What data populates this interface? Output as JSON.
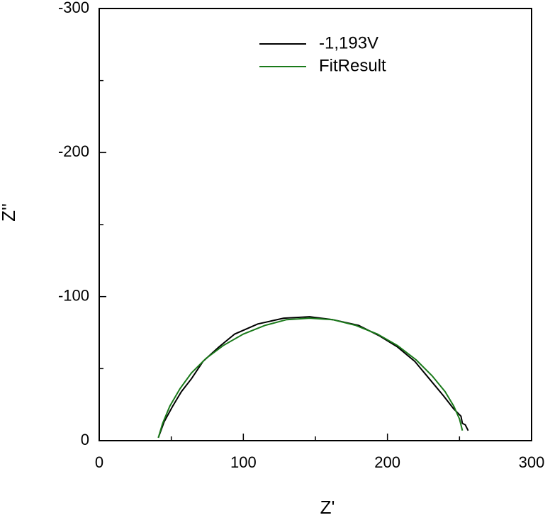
{
  "chart_data": {
    "type": "line",
    "xlabel": "Z'",
    "ylabel": "Z''",
    "xlim": [
      0,
      300
    ],
    "ylim": [
      0,
      -300
    ],
    "xticks": [
      0,
      100,
      200,
      300
    ],
    "yticks": [
      0,
      -100,
      -200,
      -300
    ],
    "xminorticks": [
      50,
      150,
      250
    ],
    "yminorticks": [
      -50,
      -150,
      -250
    ],
    "legend": "upper center",
    "series": [
      {
        "name": "-1,193V",
        "color": "#000000",
        "x": [
          41,
          45,
          51,
          57,
          64,
          72,
          83,
          94,
          110,
          128,
          146,
          162,
          180,
          194,
          207,
          219,
          229,
          239,
          246,
          251,
          252,
          254,
          256
        ],
        "values": [
          -2,
          -13,
          -24,
          -34,
          -43,
          -55,
          -65,
          -74,
          -81,
          -85,
          -86,
          -84,
          -80,
          -73,
          -65,
          -55,
          -43,
          -31,
          -22,
          -17,
          -12,
          -11,
          -7
        ]
      },
      {
        "name": "FitResult",
        "color": "#1a7a1a",
        "x": [
          41,
          44,
          49,
          56,
          64,
          74,
          86,
          100,
          115,
          130,
          146,
          162,
          178,
          193,
          207,
          220,
          231,
          240,
          246,
          250,
          252
        ],
        "values": [
          -2,
          -12,
          -24,
          -36,
          -47,
          -57,
          -66,
          -74,
          -80,
          -84,
          -85,
          -84,
          -80,
          -74,
          -66,
          -56,
          -45,
          -34,
          -24,
          -15,
          -7
        ]
      }
    ]
  }
}
